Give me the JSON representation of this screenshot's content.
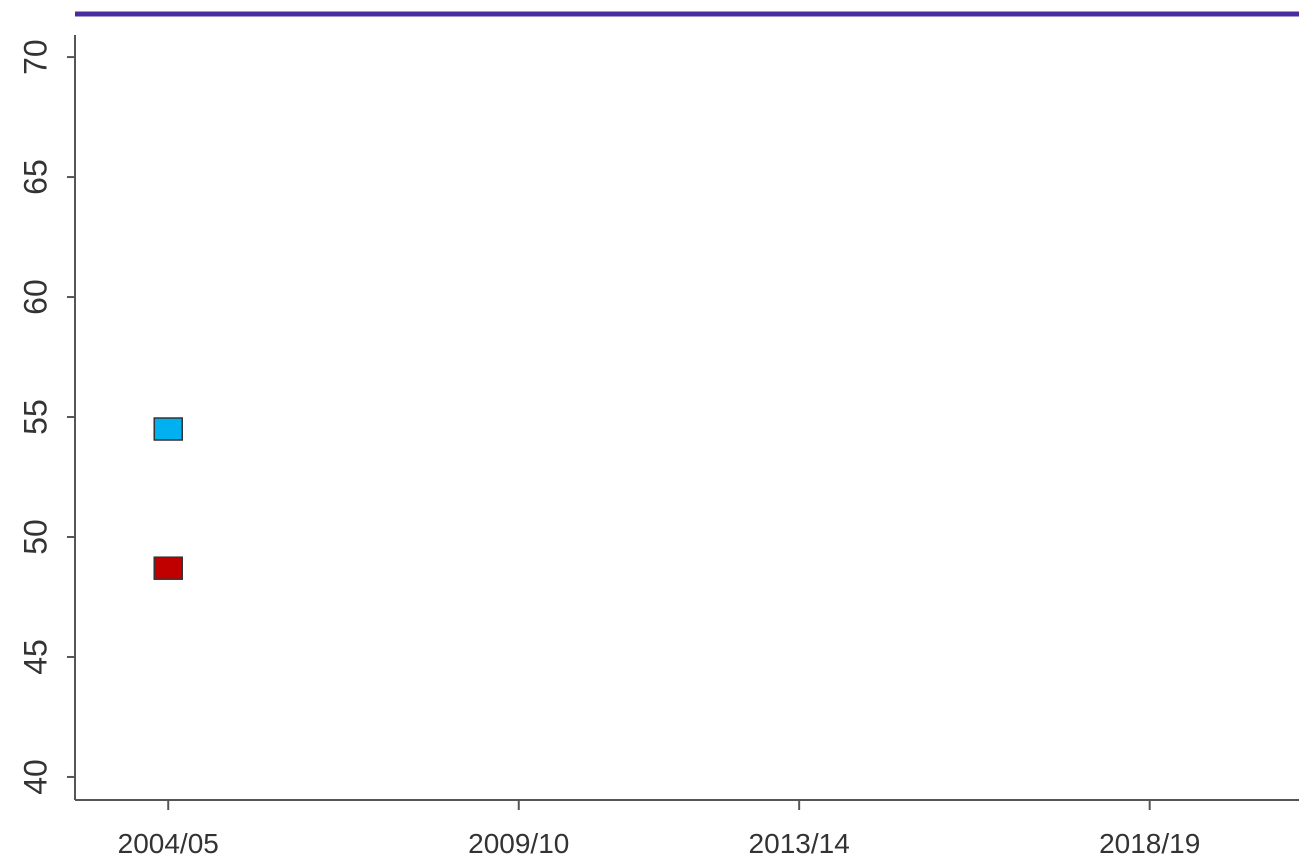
{
  "chart_data": {
    "type": "scatter",
    "x": [
      2004
    ],
    "series": [
      {
        "color": "#00b0f0",
        "values": [
          54.5
        ]
      },
      {
        "color": "#c00000",
        "values": [
          48.7
        ]
      }
    ],
    "xlim": [
      2002.67,
      2020.13
    ],
    "xticks": [
      {
        "value": 2004,
        "label": "2004/05"
      },
      {
        "value": 2009,
        "label": "2009/10"
      },
      {
        "value": 2013,
        "label": "2013/14"
      },
      {
        "value": 2018,
        "label": "2018/19"
      }
    ],
    "ylim": [
      39.04,
      70.92
    ],
    "yticks": [
      40,
      45,
      50,
      55,
      60,
      65,
      70
    ]
  }
}
